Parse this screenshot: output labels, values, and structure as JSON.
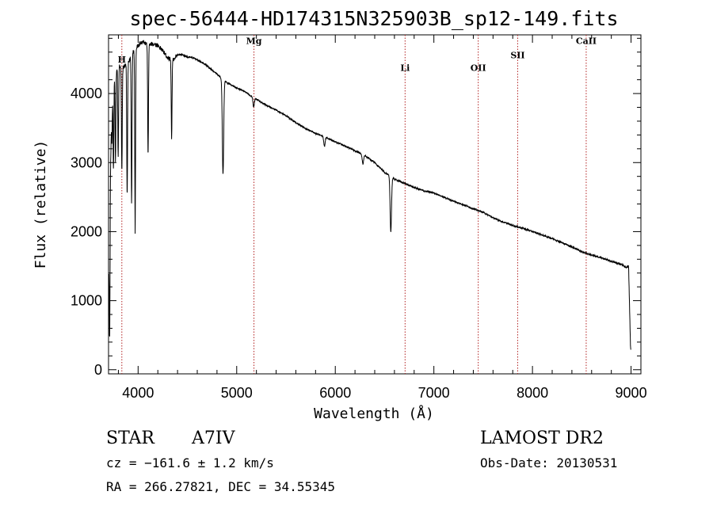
{
  "chart_data": {
    "type": "line",
    "title": "spec-56444-HD174315N325903B_sp12-149.fits",
    "xlabel": "Wavelength (Å)",
    "ylabel": "Flux (relative)",
    "xlim": [
      3700,
      9100
    ],
    "ylim": [
      -60,
      4850
    ],
    "x_ticks": [
      4000,
      5000,
      6000,
      7000,
      8000,
      9000
    ],
    "x_tick_labels": [
      "4000",
      "5000",
      "6000",
      "7000",
      "8000",
      "9000"
    ],
    "y_ticks": [
      0,
      1000,
      2000,
      3000,
      4000
    ],
    "y_tick_labels": [
      "0",
      "1000",
      "2000",
      "3000",
      "4000"
    ],
    "grid": false,
    "line_color": "#000000",
    "marker_color": "#b22222",
    "series": [
      {
        "continuum": [
          [
            3700,
            1200
          ],
          [
            3720,
            3700
          ],
          [
            3750,
            4250
          ],
          [
            3800,
            4400
          ],
          [
            3850,
            4380
          ],
          [
            3900,
            4450
          ],
          [
            3950,
            4600
          ],
          [
            4000,
            4700
          ],
          [
            4050,
            4750
          ],
          [
            4100,
            4700
          ],
          [
            4150,
            4720
          ],
          [
            4200,
            4700
          ],
          [
            4250,
            4620
          ],
          [
            4300,
            4520
          ],
          [
            4350,
            4480
          ],
          [
            4400,
            4560
          ],
          [
            4450,
            4560
          ],
          [
            4500,
            4530
          ],
          [
            4550,
            4520
          ],
          [
            4600,
            4490
          ],
          [
            4650,
            4450
          ],
          [
            4700,
            4400
          ],
          [
            4750,
            4340
          ],
          [
            4800,
            4280
          ],
          [
            4850,
            4220
          ],
          [
            4900,
            4160
          ],
          [
            4950,
            4120
          ],
          [
            5000,
            4080
          ],
          [
            5050,
            4050
          ],
          [
            5100,
            4010
          ],
          [
            5150,
            3960
          ],
          [
            5200,
            3920
          ],
          [
            5300,
            3830
          ],
          [
            5400,
            3760
          ],
          [
            5500,
            3680
          ],
          [
            5600,
            3580
          ],
          [
            5700,
            3490
          ],
          [
            5800,
            3420
          ],
          [
            5900,
            3370
          ],
          [
            6000,
            3300
          ],
          [
            6100,
            3240
          ],
          [
            6200,
            3170
          ],
          [
            6300,
            3100
          ],
          [
            6400,
            3000
          ],
          [
            6500,
            2860
          ],
          [
            6600,
            2760
          ],
          [
            6700,
            2700
          ],
          [
            6800,
            2640
          ],
          [
            6900,
            2590
          ],
          [
            7000,
            2560
          ],
          [
            7100,
            2500
          ],
          [
            7200,
            2440
          ],
          [
            7300,
            2390
          ],
          [
            7400,
            2330
          ],
          [
            7500,
            2280
          ],
          [
            7600,
            2200
          ],
          [
            7700,
            2140
          ],
          [
            7800,
            2090
          ],
          [
            7900,
            2050
          ],
          [
            8000,
            2000
          ],
          [
            8100,
            1950
          ],
          [
            8200,
            1900
          ],
          [
            8300,
            1840
          ],
          [
            8400,
            1780
          ],
          [
            8500,
            1710
          ],
          [
            8600,
            1660
          ],
          [
            8700,
            1620
          ],
          [
            8800,
            1570
          ],
          [
            8850,
            1545
          ],
          [
            8900,
            1530
          ],
          [
            8950,
            1480
          ],
          [
            8975,
            1500
          ],
          [
            8995,
            300
          ]
        ],
        "absorption_lines": [
          [
            3712,
            500
          ],
          [
            3722,
            3100
          ],
          [
            3734,
            3300
          ],
          [
            3750,
            2900
          ],
          [
            3770,
            3000
          ],
          [
            3798,
            3100
          ],
          [
            3835,
            2850
          ],
          [
            3889,
            2500
          ],
          [
            3934,
            2420
          ],
          [
            3970,
            2000
          ],
          [
            4101,
            3080
          ],
          [
            4340,
            3360
          ],
          [
            4861,
            2830
          ],
          [
            5172,
            3810
          ],
          [
            5890,
            3240
          ],
          [
            6280,
            2980
          ],
          [
            6563,
            2000
          ]
        ]
      }
    ],
    "line_markers": [
      {
        "label": "H",
        "wavelength": 3835,
        "label_y": 4450
      },
      {
        "label": "Mg",
        "wavelength": 5175,
        "label_y": 4720
      },
      {
        "label": "Li",
        "wavelength": 6708,
        "label_y": 4330
      },
      {
        "label": "OII",
        "wavelength": 7450,
        "label_y": 4330
      },
      {
        "label": "SII",
        "wavelength": 7850,
        "label_y": 4510
      },
      {
        "label": "CaII",
        "wavelength": 8545,
        "label_y": 4720
      }
    ]
  },
  "info": {
    "object_class": "STAR",
    "subclass": "A7IV",
    "survey": "LAMOST DR2",
    "redshift": "cz = −161.6 ± 1.2 km/s",
    "obs_date": "Obs-Date: 20130531",
    "coords": "RA = 266.27821, DEC =  34.55345"
  }
}
